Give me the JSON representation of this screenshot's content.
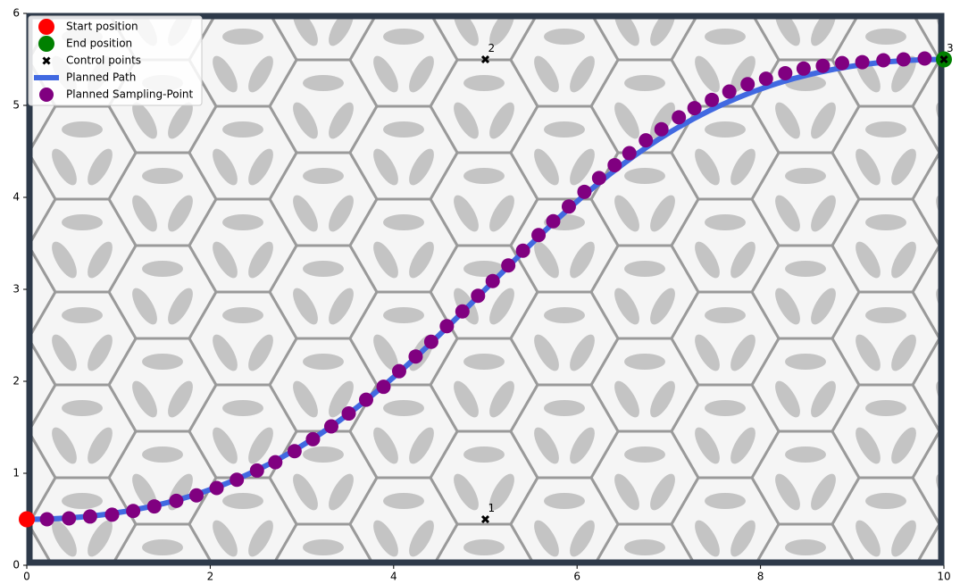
{
  "chart_data": {
    "type": "scatter",
    "xlim": [
      0,
      10
    ],
    "ylim": [
      0,
      6
    ],
    "xticks": [
      0,
      2,
      4,
      6,
      8,
      10
    ],
    "yticks": [
      0,
      1,
      2,
      3,
      4,
      5,
      6
    ],
    "legend": "upper left",
    "series": [
      {
        "name": "Start position",
        "color": "#ff0000",
        "x": [
          0
        ],
        "y": [
          0.5
        ]
      },
      {
        "name": "End position",
        "color": "#008000",
        "x": [
          10
        ],
        "y": [
          5.5
        ]
      },
      {
        "name": "Control points",
        "color": "#000000",
        "x": [
          5,
          5,
          10
        ],
        "y": [
          0.5,
          5.5,
          5.5
        ],
        "labels": [
          "1",
          "2",
          "3"
        ]
      },
      {
        "name": "Planned Path",
        "color": "#4169e1"
      },
      {
        "name": "Planned Sampling-Point",
        "color": "#800080",
        "x": [
          0,
          0.22,
          0.46,
          0.69,
          0.93,
          1.16,
          1.39,
          1.63,
          1.85,
          2.07,
          2.29,
          2.51,
          2.71,
          2.92,
          3.12,
          3.32,
          3.51,
          3.7,
          3.89,
          4.06,
          4.24,
          4.41,
          4.58,
          4.75,
          4.92,
          5.08,
          5.25,
          5.41,
          5.58,
          5.74,
          5.91,
          6.08,
          6.24,
          6.41,
          6.57,
          6.75,
          6.92,
          7.11,
          7.28,
          7.47,
          7.66,
          7.86,
          8.06,
          8.27,
          8.47,
          8.68,
          8.89,
          9.11,
          9.34,
          9.56,
          9.79,
          10
        ],
        "y": [
          0.5,
          0.5,
          0.51,
          0.53,
          0.55,
          0.59,
          0.64,
          0.7,
          0.76,
          0.84,
          0.93,
          1.03,
          1.12,
          1.24,
          1.37,
          1.51,
          1.65,
          1.8,
          1.94,
          2.11,
          2.27,
          2.43,
          2.6,
          2.76,
          2.93,
          3.09,
          3.26,
          3.42,
          3.59,
          3.74,
          3.9,
          4.06,
          4.21,
          4.35,
          4.48,
          4.62,
          4.74,
          4.87,
          4.97,
          5.06,
          5.15,
          5.23,
          5.29,
          5.35,
          5.4,
          5.43,
          5.46,
          5.47,
          5.49,
          5.5,
          5.51,
          5.5
        ]
      }
    ]
  }
}
